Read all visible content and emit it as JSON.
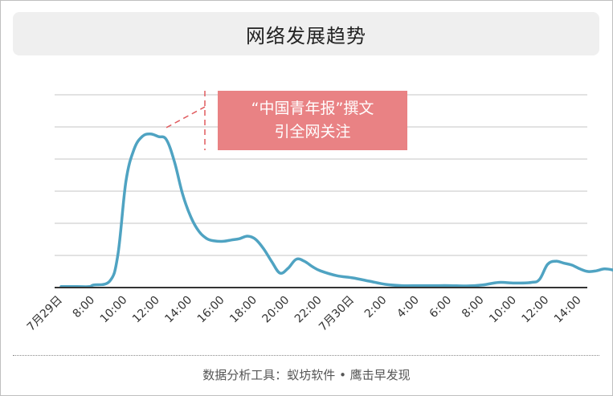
{
  "title": "网络发展趋势",
  "footer": "数据分析工具：蚁坊软件 • 鹰击早发现",
  "colors": {
    "line": "#4fa3c2",
    "grid": "#c4c4c4",
    "axis": "#333333",
    "annotation_bg": "#e98284",
    "annotation_text": "#ffffff",
    "annotation_leader": "#e05a5e",
    "tick_text": "#333333"
  },
  "chart_data": {
    "type": "line",
    "title": "网络发展趋势",
    "xlabel": "",
    "ylabel": "",
    "grid": true,
    "y_ticks_shown": false,
    "ylim": [
      0,
      6
    ],
    "categories": [
      "7月29日",
      "8:00",
      "10:00",
      "12:00",
      "14:00",
      "16:00",
      "18:00",
      "20:00",
      "22:00",
      "7月30日",
      "2:00",
      "4:00",
      "6:00",
      "8:00",
      "10:00",
      "12:00",
      "14:00"
    ],
    "x": [
      0,
      8,
      10,
      12,
      14,
      16,
      18,
      20,
      22,
      24,
      26,
      28,
      30,
      32,
      34,
      36,
      38
    ],
    "series": [
      {
        "values": [
          [
            0,
            0.03
          ],
          [
            4,
            0.03
          ],
          [
            7,
            0.03
          ],
          [
            8,
            0.08
          ],
          [
            9,
            0.2
          ],
          [
            9.5,
            1.0
          ],
          [
            10,
            3.3
          ],
          [
            10.5,
            4.3
          ],
          [
            11,
            4.7
          ],
          [
            11.5,
            4.78
          ],
          [
            12,
            4.7
          ],
          [
            12.5,
            4.6
          ],
          [
            13,
            3.9
          ],
          [
            13.5,
            2.9
          ],
          [
            14,
            2.2
          ],
          [
            14.5,
            1.75
          ],
          [
            15,
            1.52
          ],
          [
            15.5,
            1.45
          ],
          [
            16,
            1.44
          ],
          [
            16.5,
            1.48
          ],
          [
            17,
            1.52
          ],
          [
            17.5,
            1.6
          ],
          [
            18,
            1.5
          ],
          [
            18.5,
            1.2
          ],
          [
            19,
            0.8
          ],
          [
            19.5,
            0.45
          ],
          [
            20,
            0.6
          ],
          [
            20.5,
            0.88
          ],
          [
            21,
            0.82
          ],
          [
            21.5,
            0.65
          ],
          [
            22,
            0.52
          ],
          [
            23,
            0.37
          ],
          [
            24,
            0.3
          ],
          [
            25,
            0.2
          ],
          [
            26,
            0.1
          ],
          [
            27,
            0.06
          ],
          [
            28,
            0.06
          ],
          [
            29,
            0.06
          ],
          [
            30,
            0.06
          ],
          [
            31,
            0.05
          ],
          [
            32,
            0.08
          ],
          [
            33,
            0.16
          ],
          [
            34,
            0.14
          ],
          [
            35,
            0.16
          ],
          [
            35.5,
            0.25
          ],
          [
            36,
            0.72
          ],
          [
            36.5,
            0.82
          ],
          [
            37,
            0.76
          ],
          [
            37.5,
            0.7
          ],
          [
            38,
            0.58
          ],
          [
            38.5,
            0.5
          ],
          [
            39,
            0.52
          ],
          [
            39.5,
            0.58
          ],
          [
            40,
            0.55
          ],
          [
            40.5,
            0.47
          ],
          [
            41,
            0.36
          ],
          [
            41.5,
            0.22
          ],
          [
            42,
            0.12
          ]
        ]
      }
    ],
    "annotations": [
      {
        "text_line1": "“中国青年报”撰文",
        "text_line2": "引全网关注",
        "x": 12,
        "y": 4.78
      }
    ]
  }
}
